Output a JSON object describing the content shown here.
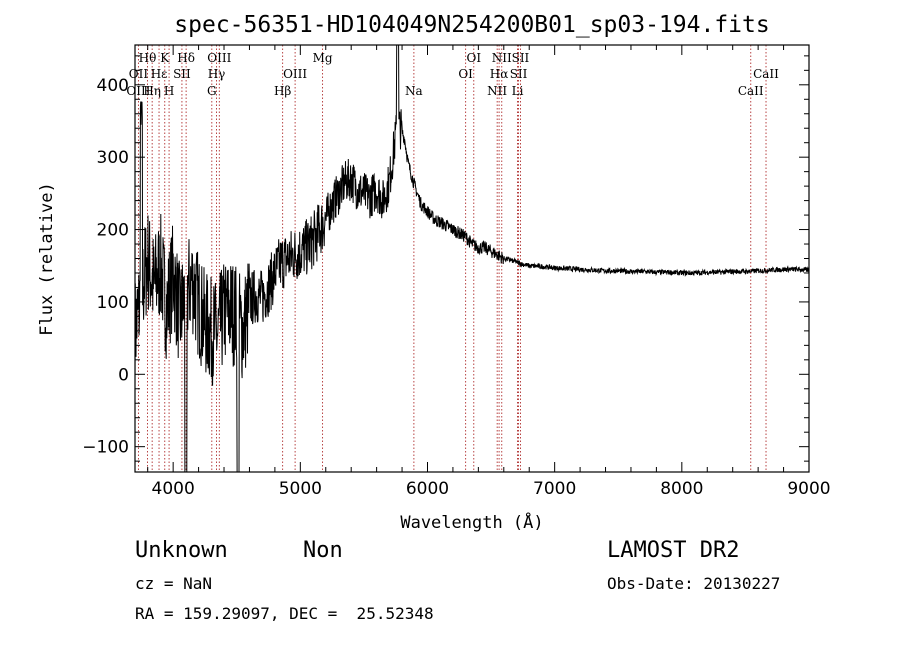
{
  "chart_data": {
    "type": "line",
    "title": "spec-56351-HD104049N254200B01_sp03-194.fits",
    "xlabel": "Wavelength (Å)",
    "ylabel": "Flux (relative)",
    "xlim": [
      3700,
      9000
    ],
    "ylim": [
      -135,
      455
    ],
    "x_ticks": [
      4000,
      5000,
      6000,
      7000,
      8000,
      9000
    ],
    "y_ticks": [
      -100,
      0,
      100,
      200,
      300,
      400
    ],
    "grid": false,
    "series": [
      {
        "x": [
          3700,
          3750,
          3800,
          3850,
          3900,
          3950,
          4000,
          4050,
          4100,
          4150,
          4200,
          4250,
          4300,
          4350,
          4400,
          4450,
          4500,
          4550,
          4600,
          4650,
          4700,
          4750,
          4800,
          4850,
          4900,
          4950,
          5000,
          5050,
          5100,
          5150,
          5200,
          5250,
          5300,
          5350,
          5400,
          5450,
          5500,
          5550,
          5600,
          5650,
          5700,
          5750,
          5770,
          5790,
          5820,
          5850,
          5900,
          5950,
          6000,
          6050,
          6100,
          6150,
          6200,
          6250,
          6300,
          6350,
          6400,
          6450,
          6500,
          6550,
          6600,
          6650,
          6700,
          6750,
          6800,
          6900,
          7000,
          7100,
          7200,
          7300,
          7400,
          7500,
          7600,
          7700,
          7800,
          7900,
          8000,
          8100,
          8200,
          8300,
          8400,
          8500,
          8600,
          8700,
          8800,
          8900,
          9000
        ],
        "y": [
          60,
          110,
          160,
          120,
          150,
          90,
          140,
          80,
          110,
          130,
          95,
          70,
          60,
          55,
          85,
          90,
          80,
          60,
          100,
          110,
          105,
          120,
          140,
          155,
          160,
          165,
          170,
          175,
          185,
          200,
          215,
          235,
          250,
          265,
          270,
          255,
          250,
          245,
          255,
          240,
          265,
          330,
          345,
          340,
          325,
          290,
          260,
          235,
          225,
          215,
          210,
          205,
          200,
          195,
          190,
          180,
          175,
          175,
          170,
          165,
          160,
          158,
          155,
          152,
          150,
          149,
          147,
          146,
          145,
          144,
          143,
          143,
          142,
          142,
          141,
          141,
          140,
          140,
          141,
          141,
          142,
          142,
          143,
          144,
          145,
          145,
          144
        ]
      }
    ],
    "spectral_lines": [
      {
        "label": "Hθ",
        "wavelength": 3798,
        "row": 0
      },
      {
        "label": "OII",
        "wavelength": 3727,
        "row": 1
      },
      {
        "label": "OIII",
        "wavelength": 3727,
        "row": 2
      },
      {
        "label": "K",
        "wavelength": 3934,
        "row": 0
      },
      {
        "label": "Hε",
        "wavelength": 3889,
        "row": 1
      },
      {
        "label": "Hη",
        "wavelength": 3835,
        "row": 2
      },
      {
        "label": "SII",
        "wavelength": 4069,
        "row": 1
      },
      {
        "label": "H",
        "wavelength": 3968,
        "row": 2
      },
      {
        "label": "Hδ",
        "wavelength": 4102,
        "row": 0
      },
      {
        "label": "OIII",
        "wavelength": 4363,
        "row": 0
      },
      {
        "label": "Hγ",
        "wavelength": 4341,
        "row": 1
      },
      {
        "label": "G",
        "wavelength": 4304,
        "row": 2
      },
      {
        "label": "OIII",
        "wavelength": 4959,
        "row": 1
      },
      {
        "label": "Hβ",
        "wavelength": 4861,
        "row": 2
      },
      {
        "label": "Mg",
        "wavelength": 5175,
        "row": 0
      },
      {
        "label": "Na",
        "wavelength": 5893,
        "row": 2
      },
      {
        "label": "OI",
        "wavelength": 6364,
        "row": 0
      },
      {
        "label": "OI",
        "wavelength": 6300,
        "row": 1
      },
      {
        "label": "NII",
        "wavelength": 6584,
        "row": 0
      },
      {
        "label": "Hα",
        "wavelength": 6563,
        "row": 1
      },
      {
        "label": "NII",
        "wavelength": 6548,
        "row": 2
      },
      {
        "label": "SII",
        "wavelength": 6731,
        "row": 0
      },
      {
        "label": "SII",
        "wavelength": 6716,
        "row": 1
      },
      {
        "label": "Li",
        "wavelength": 6708,
        "row": 2
      },
      {
        "label": "CaII",
        "wavelength": 8662,
        "row": 1
      },
      {
        "label": "CaII",
        "wavelength": 8542,
        "row": 2
      }
    ]
  },
  "info": {
    "class": "Unknown",
    "subclass": "Non",
    "survey": "LAMOST DR2",
    "cz": "cz = NaN",
    "obs_date": "Obs-Date: 20130227",
    "coords": "RA = 159.29097, DEC =  25.52348"
  }
}
